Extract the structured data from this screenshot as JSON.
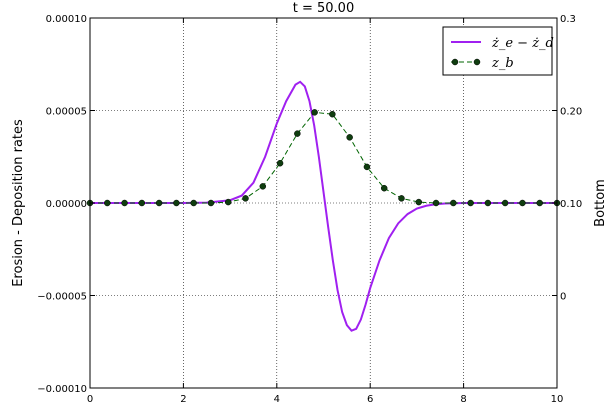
{
  "chart_data": {
    "type": "line",
    "title": "t = 50.00",
    "xlabel": "",
    "ylabel": "Erosion - Deposition rates",
    "y2label": "Bottom",
    "xlim": [
      0,
      10
    ],
    "ylim": [
      -0.0001,
      0.0001
    ],
    "y2lim": [
      -0.1,
      0.3
    ],
    "x_ticks": [
      0,
      2,
      4,
      6,
      8,
      10
    ],
    "x_tick_labels": [
      "0",
      "2",
      "4",
      "6",
      "8",
      "10"
    ],
    "y_ticks": [
      -0.0001,
      -5e-05,
      0,
      5e-05,
      0.0001
    ],
    "y_tick_labels": [
      "−0.00010",
      "−0.00005",
      "0.00000",
      "0.00005",
      "0.00010"
    ],
    "y2_ticks": [
      0.0,
      0.1,
      0.2,
      0.3
    ],
    "y2_tick_labels": [
      "0",
      "0.10",
      "0.20",
      "0.3"
    ],
    "grid": true,
    "legend_position": "top-right",
    "series": [
      {
        "name": "ż_e − ż_d",
        "axis": "left",
        "style": "solid",
        "color": "#a020f0",
        "x": [
          0,
          1,
          2,
          2.5,
          3,
          3.25,
          3.5,
          3.75,
          4,
          4.2,
          4.4,
          4.5,
          4.6,
          4.7,
          4.8,
          4.9,
          5.0,
          5.1,
          5.2,
          5.3,
          5.4,
          5.5,
          5.6,
          5.7,
          5.8,
          5.9,
          6.0,
          6.2,
          6.4,
          6.6,
          6.8,
          7.0,
          7.2,
          7.4,
          7.6,
          7.8,
          8,
          8.5,
          9,
          10
        ],
        "y": [
          0,
          0,
          0,
          2e-07,
          1.5e-06,
          4e-06,
          1.1e-05,
          2.5e-05,
          4.3e-05,
          5.5e-05,
          6.4e-05,
          6.55e-05,
          6.3e-05,
          5.5e-05,
          4.2e-05,
          2.5e-05,
          6e-06,
          -1.3e-05,
          -3.1e-05,
          -4.7e-05,
          -5.9e-05,
          -6.6e-05,
          -6.9e-05,
          -6.8e-05,
          -6.3e-05,
          -5.5e-05,
          -4.6e-05,
          -3.1e-05,
          -1.9e-05,
          -1.1e-05,
          -6e-06,
          -3e-06,
          -1.5e-06,
          -7e-07,
          -3e-07,
          -1e-07,
          0,
          0,
          0,
          0
        ]
      },
      {
        "name": "z_b",
        "axis": "right",
        "style": "dashed-markers",
        "color": "#006400",
        "marker_color": "#0f3d0f",
        "x": [
          0,
          0.37,
          0.74,
          1.11,
          1.48,
          1.85,
          2.22,
          2.59,
          2.96,
          3.33,
          3.7,
          4.07,
          4.44,
          4.81,
          5.19,
          5.56,
          5.93,
          6.3,
          6.67,
          7.04,
          7.41,
          7.78,
          8.15,
          8.52,
          8.89,
          9.26,
          9.63,
          10
        ],
        "y": [
          0.1,
          0.1,
          0.1,
          0.1,
          0.1,
          0.1,
          0.1,
          0.1,
          0.101,
          0.105,
          0.118,
          0.143,
          0.175,
          0.198,
          0.196,
          0.171,
          0.139,
          0.116,
          0.105,
          0.101,
          0.1,
          0.1,
          0.1,
          0.1,
          0.1,
          0.1,
          0.1,
          0.1
        ]
      }
    ]
  }
}
